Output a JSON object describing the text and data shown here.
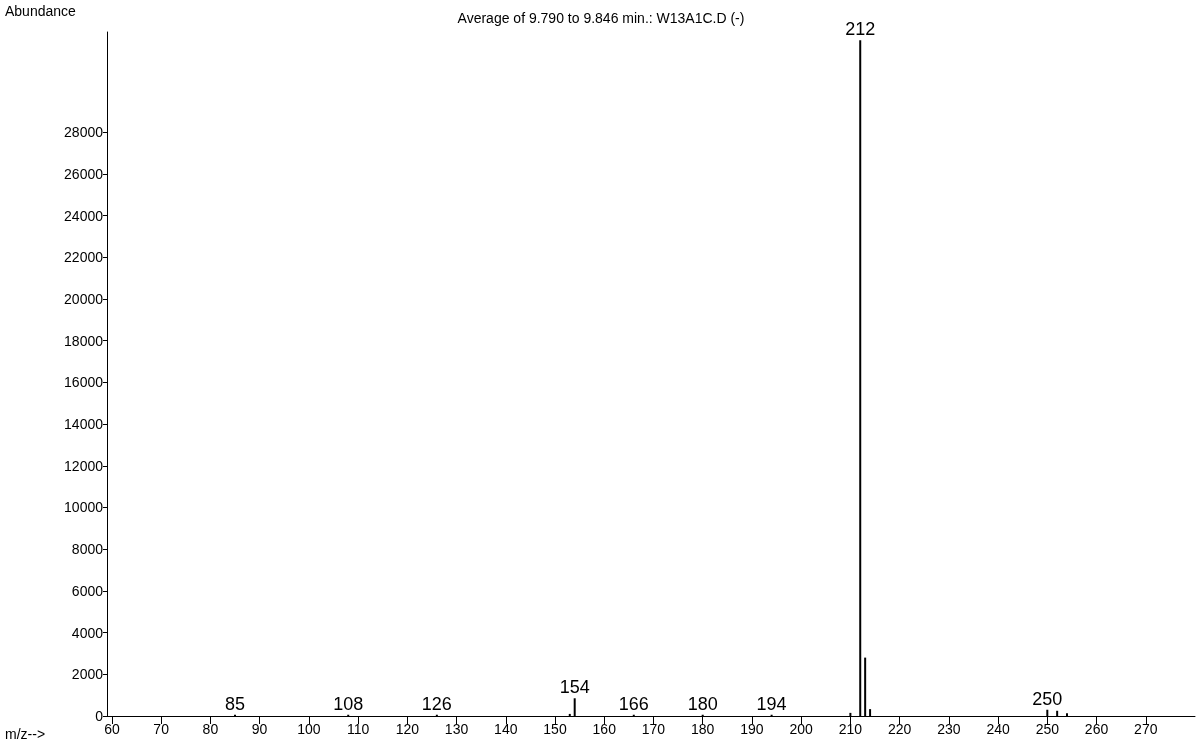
{
  "chart_data": {
    "type": "bar",
    "title": "Average of 9.790 to 9.846 min.: W13A1C.D (-)",
    "xlabel": "m/z-->",
    "ylabel": "Abundance",
    "x": [
      85,
      108,
      126,
      153,
      154,
      166,
      180,
      194,
      210,
      212,
      213,
      214,
      250,
      252,
      254
    ],
    "series": [
      {
        "color": "#000000",
        "values": [
          60,
          60,
          60,
          100,
          850,
          60,
          60,
          60,
          150,
          32400,
          2800,
          330,
          300,
          250,
          130
        ]
      }
    ],
    "xlim": [
      59,
      280
    ],
    "xticks": [
      60,
      70,
      80,
      90,
      100,
      110,
      120,
      130,
      140,
      150,
      160,
      170,
      180,
      190,
      200,
      210,
      220,
      230,
      240,
      250,
      260,
      270
    ],
    "ylim": [
      0,
      32800
    ],
    "yticks": [
      0,
      2000,
      4000,
      6000,
      8000,
      10000,
      12000,
      14000,
      16000,
      18000,
      20000,
      22000,
      24000,
      26000,
      28000
    ],
    "grid": false,
    "annotations": [
      {
        "text": "85",
        "x": 85,
        "y": 60
      },
      {
        "text": "108",
        "x": 108,
        "y": 60
      },
      {
        "text": "126",
        "x": 126,
        "y": 60
      },
      {
        "text": "154",
        "x": 154,
        "y": 850
      },
      {
        "text": "166",
        "x": 166,
        "y": 60
      },
      {
        "text": "180",
        "x": 180,
        "y": 60
      },
      {
        "text": "194",
        "x": 194,
        "y": 60
      },
      {
        "text": "212",
        "x": 212,
        "y": 32400
      },
      {
        "text": "250",
        "x": 250,
        "y": 300
      }
    ]
  }
}
